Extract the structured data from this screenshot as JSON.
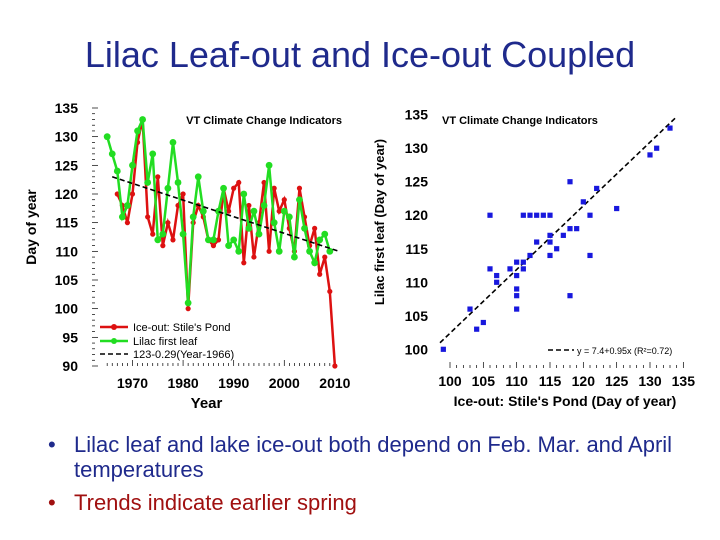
{
  "title": "Lilac Leaf-out and Ice-out Coupled",
  "bullets": [
    {
      "text": "Lilac leaf and lake ice-out both depend on Feb. Mar. and April temperatures",
      "color": "#1f2a8c"
    },
    {
      "text": "Trends indicate earlier spring",
      "color": "#a01010"
    }
  ],
  "chart_data": [
    {
      "type": "line",
      "title": "VT Climate Change Indicators",
      "xlabel": "Year",
      "ylabel": "Day of year",
      "xlim": [
        1962,
        2012
      ],
      "ylim": [
        90,
        135
      ],
      "xticks": [
        1970,
        1980,
        1990,
        2000,
        2010
      ],
      "yticks": [
        90,
        95,
        100,
        105,
        110,
        115,
        120,
        125,
        130,
        135
      ],
      "legend": "bottom-left",
      "series": [
        {
          "name": "Ice-out: Stile's Pond",
          "color": "#dd1111",
          "x": [
            1967,
            1968,
            1969,
            1970,
            1971,
            1972,
            1973,
            1974,
            1975,
            1976,
            1977,
            1978,
            1979,
            1980,
            1981,
            1982,
            1983,
            1984,
            1985,
            1986,
            1987,
            1988,
            1989,
            1990,
            1991,
            1992,
            1993,
            1994,
            1995,
            1996,
            1997,
            1998,
            1999,
            2000,
            2001,
            2002,
            2003,
            2004,
            2005,
            2006,
            2007,
            2008,
            2009,
            2010
          ],
          "y": [
            120,
            118,
            115,
            120,
            129,
            133,
            116,
            113,
            123,
            111,
            115,
            112,
            118,
            120,
            100,
            115,
            118,
            116,
            112,
            111,
            112,
            121,
            117,
            121,
            122,
            108,
            118,
            109,
            115,
            122,
            110,
            121,
            117,
            119,
            114,
            110,
            121,
            116,
            111,
            114,
            106,
            109,
            103,
            90
          ]
        },
        {
          "name": "Lilac first leaf",
          "color": "#22dd22",
          "x": [
            1965,
            1966,
            1967,
            1968,
            1969,
            1970,
            1971,
            1972,
            1973,
            1974,
            1975,
            1976,
            1977,
            1978,
            1979,
            1980,
            1981,
            1982,
            1983,
            1984,
            1985,
            1986,
            1987,
            1988,
            1989,
            1990,
            1991,
            1992,
            1993,
            1994,
            1995,
            1996,
            1997,
            1998,
            1999,
            2000,
            2001,
            2002,
            2003,
            2004,
            2005,
            2006,
            2007,
            2008,
            2009
          ],
          "y": [
            130,
            127,
            124,
            116,
            118,
            125,
            131,
            133,
            122,
            127,
            112,
            113,
            121,
            129,
            122,
            113,
            101,
            116,
            123,
            117,
            112,
            112,
            117,
            121,
            111,
            112,
            110,
            120,
            114,
            117,
            113,
            118,
            125,
            115,
            110,
            117,
            116,
            109,
            119,
            114,
            110,
            108,
            112,
            113,
            110
          ]
        },
        {
          "name": "123-0.29(Year-1966)",
          "color": "#000000",
          "dashed": true,
          "x": [
            1966,
            2011
          ],
          "y": [
            123,
            109.95
          ]
        }
      ]
    },
    {
      "type": "scatter",
      "title": "VT Climate Change Indicators",
      "xlabel": "Ice-out: Stile's Pond (Day of year)",
      "ylabel": "Lilac first leaf (Day of year)",
      "xlim": [
        98.5,
        136
      ],
      "ylim": [
        99,
        136
      ],
      "xticks": [
        100,
        105,
        110,
        115,
        120,
        125,
        130,
        135
      ],
      "yticks": [
        100,
        105,
        110,
        115,
        120,
        125,
        130,
        135
      ],
      "fit_label": "y = 7.4+0.95x (R²=0.72)",
      "fit": {
        "intercept": 7.4,
        "slope": 0.95
      },
      "points": [
        [
          133,
          133
        ],
        [
          131,
          130
        ],
        [
          130,
          129
        ],
        [
          122,
          124
        ],
        [
          118,
          125
        ],
        [
          120,
          122
        ],
        [
          125,
          121
        ],
        [
          117,
          117
        ],
        [
          121,
          120
        ],
        [
          118,
          118
        ],
        [
          112,
          120
        ],
        [
          111,
          120
        ],
        [
          113,
          120
        ],
        [
          114,
          120
        ],
        [
          115,
          120
        ],
        [
          106,
          120
        ],
        [
          119,
          118
        ],
        [
          115,
          117
        ],
        [
          113,
          116
        ],
        [
          110,
          113
        ],
        [
          111,
          113
        ],
        [
          112,
          114
        ],
        [
          111,
          112
        ],
        [
          115,
          114
        ],
        [
          115,
          116
        ],
        [
          116,
          115
        ],
        [
          121,
          114
        ],
        [
          107,
          111
        ],
        [
          110,
          111
        ],
        [
          110,
          109
        ],
        [
          110,
          108
        ],
        [
          110,
          106
        ],
        [
          109,
          112
        ],
        [
          107,
          110
        ],
        [
          106,
          112
        ],
        [
          118,
          108
        ],
        [
          104,
          103
        ],
        [
          105,
          104
        ],
        [
          103,
          106
        ],
        [
          99,
          100
        ]
      ]
    }
  ]
}
